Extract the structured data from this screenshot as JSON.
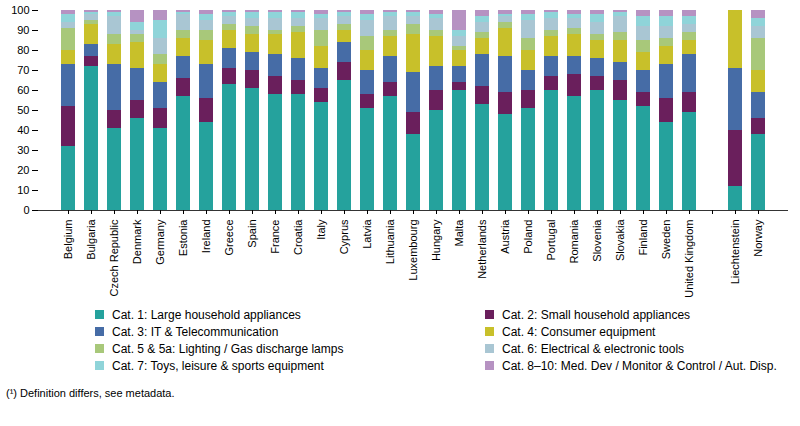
{
  "chart_data": {
    "type": "bar",
    "stacked": true,
    "grid": false,
    "legend": "bottom",
    "caption": "(¹) Definition differs, see metadata.",
    "categories": [
      "Belgium",
      "Bulgaria",
      "Czech Republic",
      "Denmark",
      "Germany",
      "Estonia",
      "Ireland",
      "Greece",
      "Spain",
      "France",
      "Croatia",
      "Italy",
      "Cyprus",
      "Latvia",
      "Lithuania",
      "Luxembourg",
      "Hungary",
      "Malta",
      "Netherlands",
      "Austria",
      "Poland",
      "Portugal",
      "Romania",
      "Slovenia",
      "Slovakia",
      "Finland",
      "Sweden",
      "United Kingdom",
      null,
      "Liechtenstein",
      "Norway"
    ],
    "ylim": [
      0,
      100
    ],
    "yticks": [
      0,
      10,
      20,
      30,
      40,
      50,
      60,
      70,
      80,
      90,
      100
    ],
    "series": [
      {
        "name": "Cat. 1: Large household appliances",
        "color": "#25a29d",
        "values": [
          32,
          72,
          41,
          46,
          41,
          57,
          44,
          63,
          61,
          58,
          58,
          54,
          65,
          51,
          57,
          38,
          50,
          60,
          53,
          48,
          51,
          60,
          57,
          60,
          55,
          52,
          44,
          49,
          null,
          12,
          38
        ]
      },
      {
        "name": "Cat. 2: Small household appliances",
        "color": "#6a1f5c",
        "values": [
          20,
          5,
          9,
          9,
          10,
          9,
          12,
          8,
          9,
          9,
          7,
          7,
          9,
          7,
          7,
          11,
          10,
          4,
          9,
          11,
          9,
          7,
          11,
          7,
          10,
          7,
          12,
          10,
          null,
          28,
          8
        ]
      },
      {
        "name": "Cat. 3: IT & Telecommunication",
        "color": "#466ca6",
        "values": [
          21,
          6,
          23,
          16,
          13,
          11,
          17,
          10,
          9,
          11,
          11,
          10,
          10,
          12,
          13,
          20,
          12,
          8,
          16,
          18,
          10,
          10,
          9,
          9,
          9,
          11,
          17,
          19,
          null,
          31,
          13
        ]
      },
      {
        "name": "Cat. 4: Consumer equipment",
        "color": "#c8c02a",
        "values": [
          7,
          10,
          10,
          13,
          9,
          9,
          12,
          9,
          9,
          10,
          13,
          11,
          6,
          10,
          10,
          19,
          15,
          8,
          8,
          14,
          10,
          10,
          11,
          9,
          11,
          9,
          9,
          7,
          null,
          29,
          11
        ]
      },
      {
        "name": "Cat. 5 & 5a: Lighting / Gas discharge lamps",
        "color": "#a8c87a",
        "values": [
          11,
          2,
          5,
          4,
          5,
          4,
          5,
          3,
          4,
          2,
          3,
          8,
          3,
          7,
          3,
          5,
          3,
          2,
          3,
          3,
          6,
          3,
          3,
          3,
          4,
          6,
          4,
          4,
          null,
          0,
          16
        ]
      },
      {
        "name": "Cat. 6: Electrical & electronic tools",
        "color": "#a9c6d3",
        "values": [
          3,
          3,
          9,
          2,
          8,
          8,
          5,
          4,
          4,
          6,
          4,
          6,
          4,
          8,
          7,
          4,
          6,
          5,
          5,
          3,
          9,
          6,
          5,
          6,
          8,
          7,
          6,
          4,
          null,
          0,
          6
        ]
      },
      {
        "name": "Cat. 7: Toys, leisure & sports equipment",
        "color": "#8fd4d9",
        "values": [
          4,
          1,
          2,
          4,
          9,
          1,
          3,
          2,
          3,
          3,
          3,
          2,
          2,
          3,
          2,
          2,
          2,
          3,
          3,
          1,
          3,
          3,
          2,
          4,
          2,
          5,
          5,
          4,
          null,
          0,
          4
        ]
      },
      {
        "name": "Cat. 8–10: Med. Dev / Monitor & Control / Aut. Disp.",
        "color": "#b692c2",
        "values": [
          2,
          1,
          1,
          6,
          5,
          1,
          2,
          1,
          1,
          1,
          1,
          2,
          1,
          2,
          1,
          1,
          2,
          10,
          3,
          2,
          2,
          1,
          2,
          2,
          1,
          3,
          3,
          3,
          null,
          0,
          4
        ]
      }
    ]
  }
}
